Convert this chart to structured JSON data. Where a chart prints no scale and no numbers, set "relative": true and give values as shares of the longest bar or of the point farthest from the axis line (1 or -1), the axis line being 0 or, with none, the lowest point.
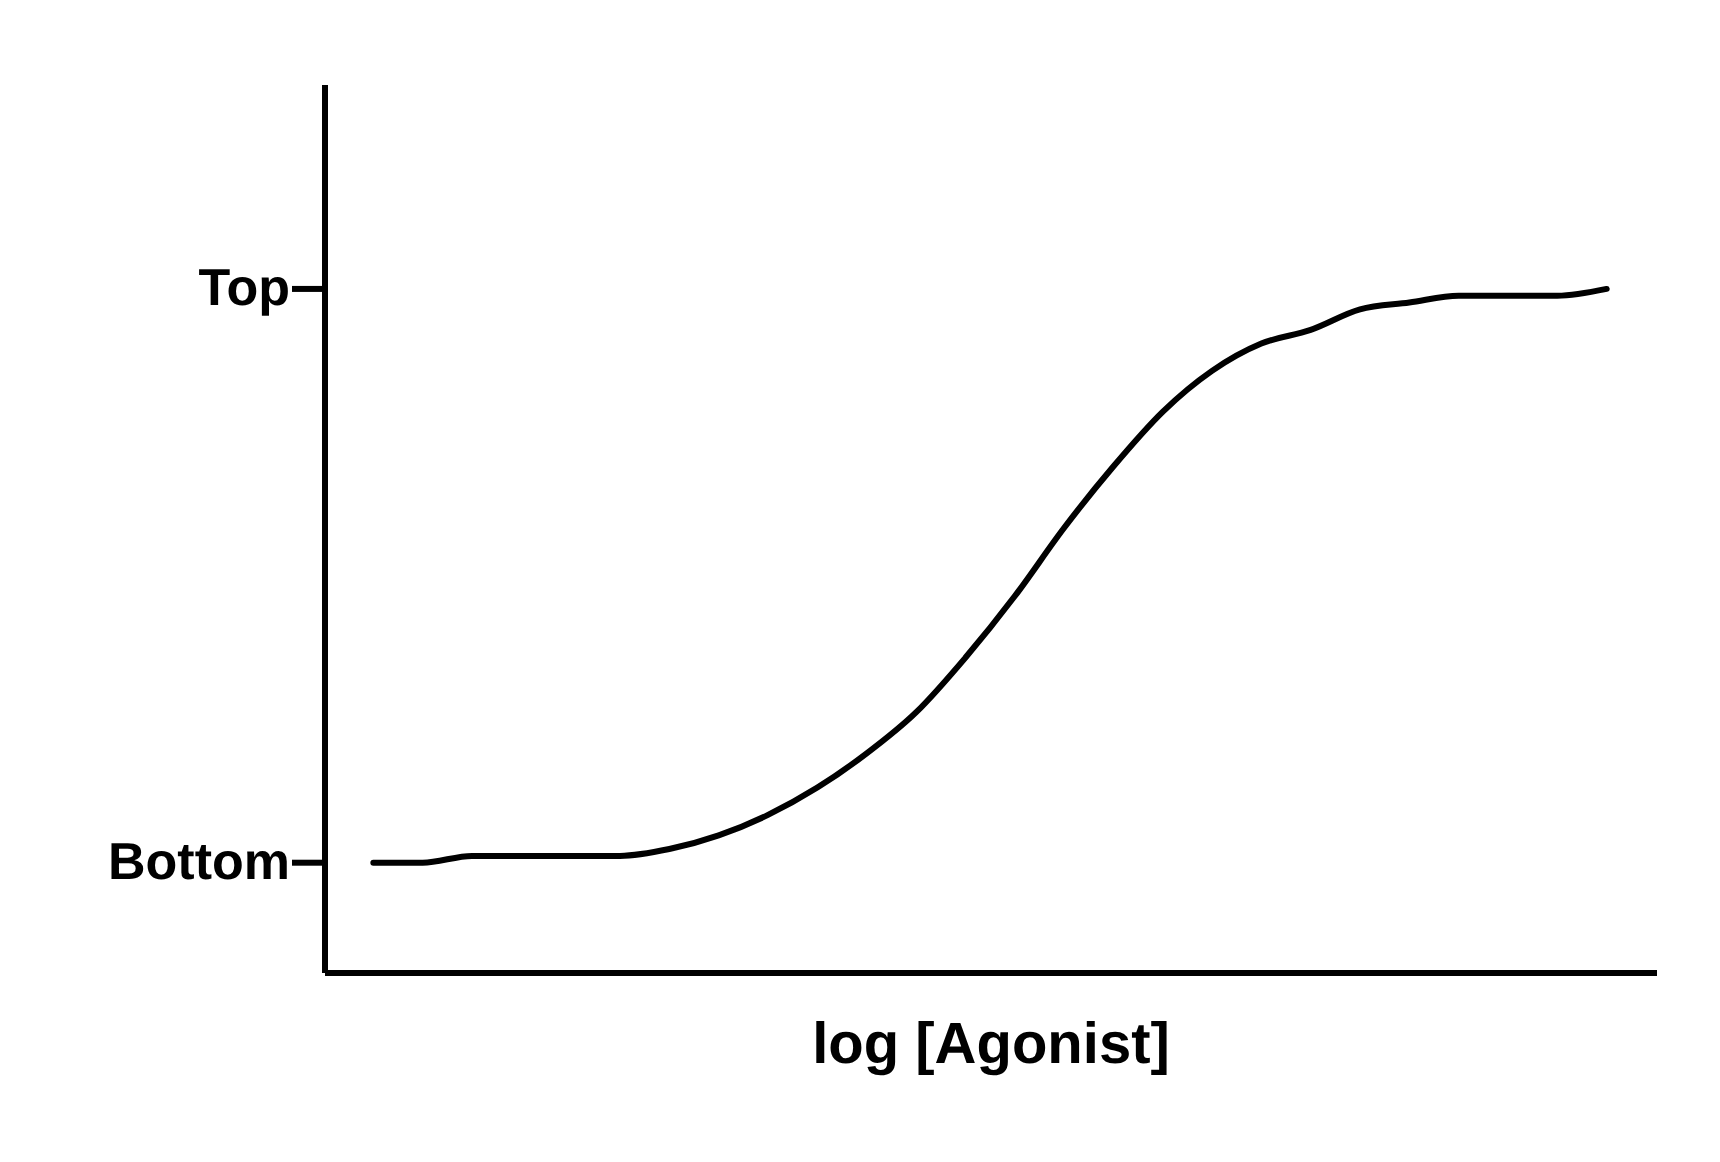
{
  "chart_data": {
    "type": "line",
    "xlabel": "log [Agonist]",
    "relative": true,
    "categories": [
      null,
      null,
      null,
      null,
      null,
      null,
      null,
      null,
      null,
      null,
      null,
      null,
      null,
      null,
      null,
      null,
      null,
      null,
      null,
      null,
      null,
      null,
      null,
      null,
      null,
      null
    ],
    "series": [
      {
        "color": "#000000",
        "values": [
          0.16,
          0.16,
          0.17,
          0.17,
          0.17,
          0.17,
          0.18,
          0.2,
          0.23,
          0.27,
          0.32,
          0.38,
          0.46,
          0.55,
          0.65,
          0.74,
          0.82,
          0.88,
          0.92,
          0.94,
          0.97,
          0.98,
          0.99,
          0.99,
          0.99,
          1.0
        ]
      }
    ],
    "annotations": [
      "Top",
      "Bottom"
    ],
    "tick_labels": false,
    "grid": false,
    "legend": false,
    "marker": "none",
    "line_style": "solid"
  }
}
